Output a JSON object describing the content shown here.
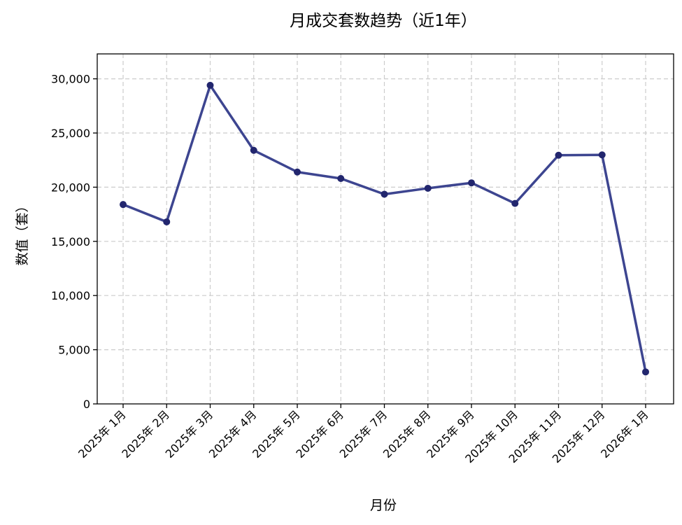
{
  "colors": {
    "line": "#3d4590",
    "marker": "#22266e"
  },
  "chart_data": {
    "type": "line",
    "title": "月成交套数趋势（近1年）",
    "xlabel": "月份",
    "ylabel": "数值（套）",
    "categories": [
      "2025年 1月",
      "2025年 2月",
      "2025年 3月",
      "2025年 4月",
      "2025年 5月",
      "2025年 6月",
      "2025年 7月",
      "2025年 8月",
      "2025年 9月",
      "2025年 10月",
      "2025年 11月",
      "2025年 12月",
      "2026年 1月"
    ],
    "series": [
      {
        "values": [
          18400,
          16800,
          29400,
          23400,
          21400,
          20800,
          19350,
          19900,
          20400,
          18500,
          22950,
          22980,
          2950
        ]
      }
    ],
    "ylim": [
      0,
      32300
    ],
    "yticks": [
      0,
      5000,
      10000,
      15000,
      20000,
      25000,
      30000
    ],
    "ytick_labels": [
      "0",
      "5,000",
      "10,000",
      "15,000",
      "20,000",
      "25,000",
      "30,000"
    ],
    "grid": true,
    "legend": "none"
  }
}
